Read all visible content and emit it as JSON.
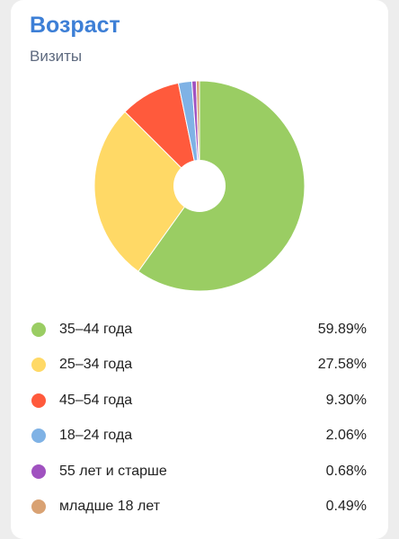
{
  "chart_data": {
    "type": "pie",
    "title": "Возраст",
    "subtitle": "Визиты",
    "categories": [
      "35–44 года",
      "25–34 года",
      "45–54 года",
      "18–24 года",
      "55 лет и старше",
      "младше 18 лет"
    ],
    "values": [
      59.89,
      27.58,
      9.3,
      2.06,
      0.68,
      0.49
    ],
    "value_labels": [
      "59.89%",
      "27.58%",
      "9.30%",
      "2.06%",
      "0.68%",
      "0.49%"
    ],
    "colors": [
      "#9acd63",
      "#ffd966",
      "#ff5a3c",
      "#7fb2e5",
      "#a052c0",
      "#d9a273"
    ],
    "legend_position": "bottom",
    "donut": true
  }
}
